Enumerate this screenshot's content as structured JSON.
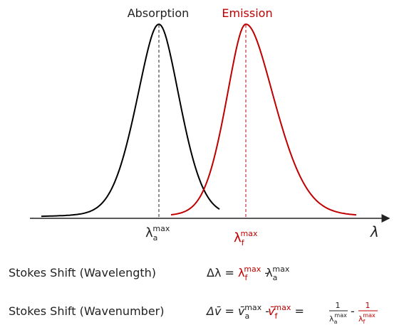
{
  "curves": [
    {
      "label": "Absorption"
    },
    {
      "label": "Emission"
    }
  ],
  "axis_label": "λ",
  "peak_labels": [
    {
      "base": "λ",
      "sub": "a",
      "sup": "max"
    },
    {
      "base": "λ",
      "sub": "f",
      "sup": "max"
    }
  ],
  "equations": [
    {
      "name": "Stokes Shift (Wavelength)",
      "lhs": "Δλ =",
      "t1": {
        "base": "λ",
        "sub": "f",
        "sup": "max"
      },
      "op1": "-",
      "t2": {
        "base": "λ",
        "sub": "a",
        "sup": "max"
      }
    },
    {
      "name": "Stokes Shift (Wavenumber)",
      "lhs": "Δv̄ =",
      "t1": {
        "base": "v̄",
        "sub": "a",
        "sup": "max"
      },
      "op1": "-",
      "t2": {
        "base": "v̄",
        "sub": "f",
        "sup": "max"
      },
      "op2": "=",
      "f1": {
        "num": "1",
        "base": "λ",
        "sub": "a",
        "sup": "max"
      },
      "op3": "-",
      "f2": {
        "num": "1",
        "base": "λ",
        "sub": "f",
        "sup": "max"
      }
    }
  ]
}
